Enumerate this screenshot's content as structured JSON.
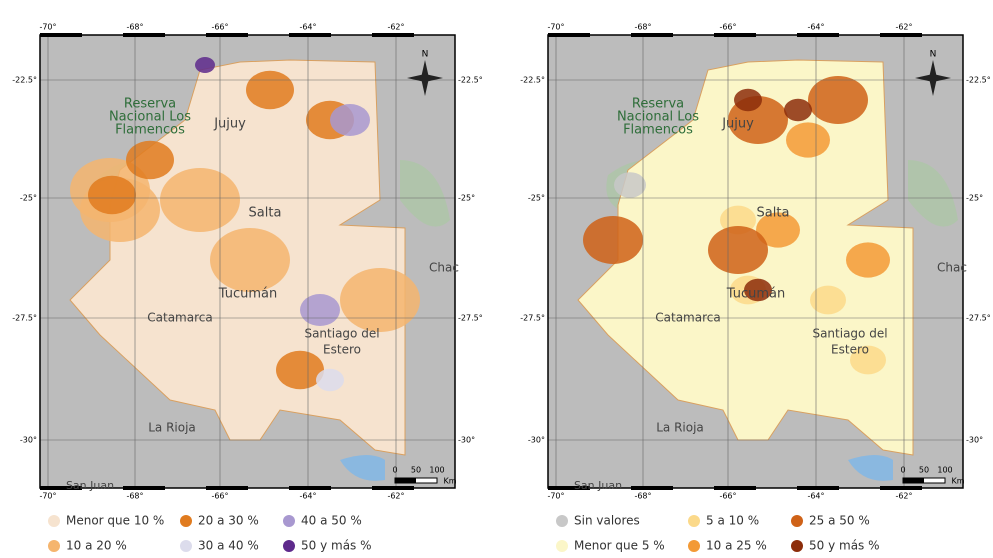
{
  "maps": [
    {
      "ticks": {
        "x": [
          "-70°",
          "-68°",
          "-66°",
          "-64°",
          "-62°"
        ],
        "y": [
          "-22.5°",
          "-25°",
          "-27.5°",
          "-30°"
        ]
      },
      "places": [
        "Reserva",
        "Nacional Los",
        "Flamencos",
        "Jujuy",
        "Salta",
        "Tucumán",
        "Catamarca",
        "Santiago del",
        "Estero",
        "La Rioja",
        "Chac",
        "San Juan"
      ],
      "north": "N",
      "scale": [
        "0",
        "50",
        "100",
        "Km"
      ],
      "legend": [
        {
          "label": "Menor que 10 %",
          "color": "#f6e3cf"
        },
        {
          "label": "20 a 30 %",
          "color": "#e07b1f"
        },
        {
          "label": "40 a 50 %",
          "color": "#a898d0"
        },
        {
          "label": "10 a 20 %",
          "color": "#f5b56e"
        },
        {
          "label": "30 a 40 %",
          "color": "#dcdcec"
        },
        {
          "label": "50 y más %",
          "color": "#5e2a8c"
        }
      ]
    },
    {
      "ticks": {
        "x": [
          "-70°",
          "-68°",
          "-66°",
          "-64°",
          "-62°"
        ],
        "y": [
          "-22.5°",
          "-25°",
          "-27.5°",
          "-30°"
        ]
      },
      "places": [
        "Reserva",
        "Nacional Los",
        "Flamencos",
        "Jujuy",
        "Salta",
        "Tucumán",
        "Catamarca",
        "Santiago del",
        "Estero",
        "La Rioja",
        "Chac",
        "San Juan"
      ],
      "north": "N",
      "scale": [
        "0",
        "50",
        "100",
        "Km"
      ],
      "legend": [
        {
          "label": "Sin valores",
          "color": "#c8c8c8"
        },
        {
          "label": "5 a 10 %",
          "color": "#fbd98a"
        },
        {
          "label": "25 a 50 %",
          "color": "#cf6218"
        },
        {
          "label": "Menor que 5 %",
          "color": "#fbf6c8"
        },
        {
          "label": "10 a 25 %",
          "color": "#f39a36"
        },
        {
          "label": "50 y más %",
          "color": "#8c2d0a"
        }
      ]
    }
  ]
}
